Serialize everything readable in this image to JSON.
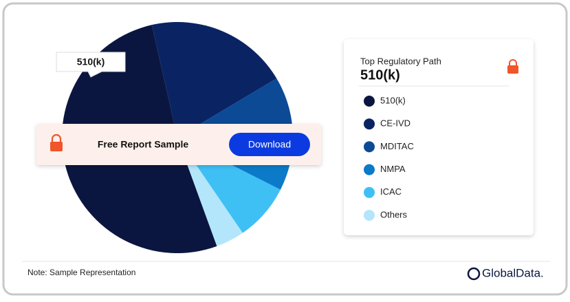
{
  "chart_data": {
    "type": "pie",
    "legend_title": "Top Regulatory Path",
    "highlight": "510(k)",
    "tooltip": "510(k)",
    "categories": [
      "510(k)",
      "CE-IVD",
      "MDITAC",
      "NMPA",
      "ICAC",
      "Others"
    ],
    "values": [
      52,
      20,
      11,
      5,
      8,
      4
    ],
    "colors": [
      "#0b1640",
      "#0a2463",
      "#0c4a96",
      "#0a7ac9",
      "#3ec0f5",
      "#b3e6fb"
    ]
  },
  "banner": {
    "text": "Free Report Sample",
    "button": "Download"
  },
  "note": "Note: Sample Representation",
  "logo": "GlobalData."
}
